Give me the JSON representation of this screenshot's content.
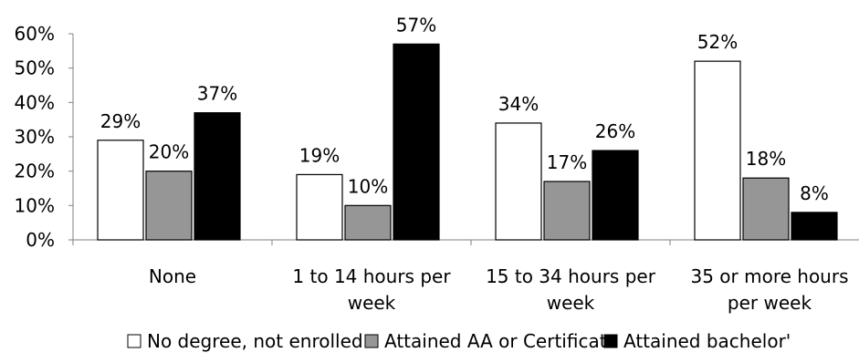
{
  "chart_data": {
    "type": "bar",
    "title": "",
    "xlabel": "",
    "ylabel": "",
    "ylim": [
      0,
      60
    ],
    "y_ticks": [
      "0%",
      "10%",
      "20%",
      "30%",
      "40%",
      "50%",
      "60%"
    ],
    "grid": false,
    "legend_position": "bottom",
    "categories": [
      [
        "None"
      ],
      [
        "1 to 14 hours per",
        "week"
      ],
      [
        "15 to 34 hours per",
        "week"
      ],
      [
        "35 or more hours",
        "per week"
      ]
    ],
    "series": [
      {
        "name": "No degree, not enrolled",
        "color": "#ffffff",
        "values": [
          29,
          19,
          34,
          52
        ],
        "labels": [
          "29%",
          "19%",
          "34%",
          "52%"
        ]
      },
      {
        "name": "Attained AA or Certificate",
        "color": "#969696",
        "values": [
          20,
          10,
          17,
          18
        ],
        "labels": [
          "20%",
          "10%",
          "17%",
          "18%"
        ]
      },
      {
        "name": "Attained bachelor'",
        "color": "#000000",
        "values": [
          37,
          57,
          26,
          8
        ],
        "labels": [
          "37%",
          "57%",
          "26%",
          "8%"
        ]
      }
    ]
  }
}
